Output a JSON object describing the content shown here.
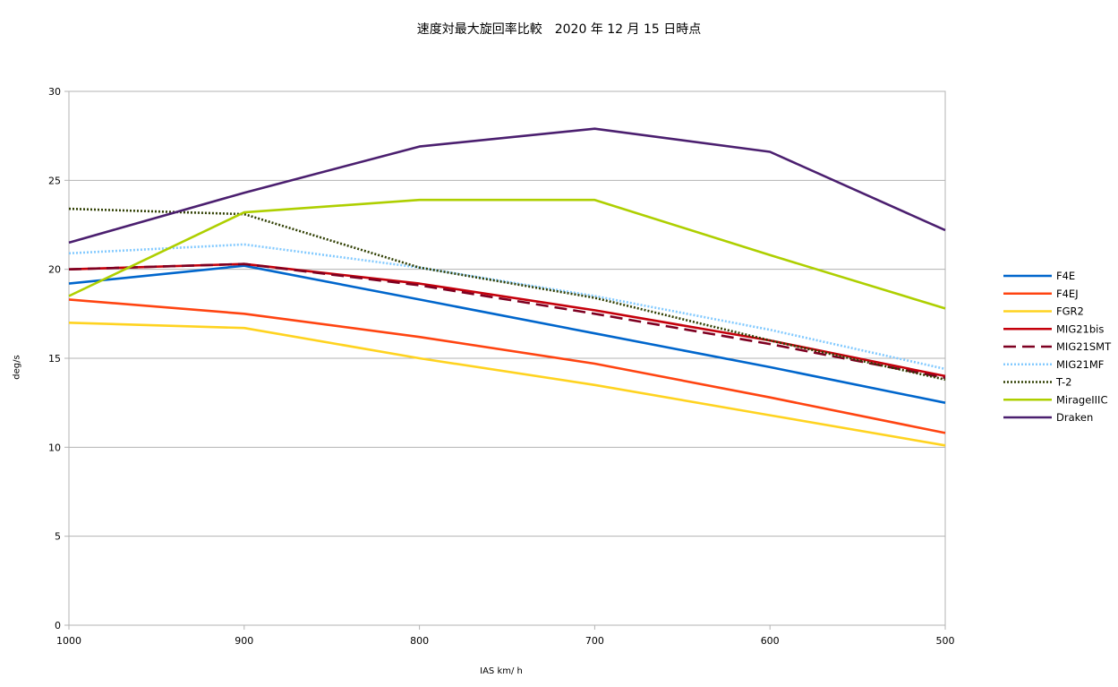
{
  "chart_data": {
    "type": "line",
    "title": "速度対最大旋回率比較　2020 年 12 月 15 日時点",
    "xlabel": "IAS km/ h",
    "ylabel": "deg/s",
    "categories": [
      "1000",
      "900",
      "800",
      "700",
      "600",
      "500"
    ],
    "ylim": [
      0,
      30
    ],
    "yticks": [
      0,
      5,
      10,
      15,
      20,
      25,
      30
    ],
    "grid": true,
    "legend_position": "right",
    "series": [
      {
        "name": "F4E",
        "color": "#0066cc",
        "style": "solid",
        "values": [
          19.2,
          20.2,
          18.3,
          16.4,
          14.5,
          12.5
        ]
      },
      {
        "name": "F4EJ",
        "color": "#ff4411",
        "style": "solid",
        "values": [
          18.3,
          17.5,
          16.2,
          14.7,
          12.8,
          10.8
        ]
      },
      {
        "name": "FGR2",
        "color": "#ffd320",
        "style": "solid",
        "values": [
          17.0,
          16.7,
          15.0,
          13.5,
          11.8,
          10.1
        ]
      },
      {
        "name": "MIG21bis",
        "color": "#c5000b",
        "style": "solid",
        "values": [
          20.0,
          20.3,
          19.2,
          17.7,
          16.0,
          14.0
        ]
      },
      {
        "name": "MIG21SMT",
        "color": "#7e0021",
        "style": "dash",
        "values": [
          20.0,
          20.3,
          19.1,
          17.5,
          15.8,
          13.9
        ]
      },
      {
        "name": "MIG21MF",
        "color": "#83caff",
        "style": "dot",
        "values": [
          20.9,
          21.4,
          20.1,
          18.5,
          16.6,
          14.4
        ]
      },
      {
        "name": "T-2",
        "color": "#314004",
        "style": "dot",
        "values": [
          23.4,
          23.1,
          20.1,
          18.4,
          16.0,
          13.8
        ]
      },
      {
        "name": "MirageIIIC",
        "color": "#aecf00",
        "style": "solid",
        "values": [
          18.5,
          23.2,
          23.9,
          23.9,
          20.8,
          17.8
        ]
      },
      {
        "name": "Draken",
        "color": "#4b1f6f",
        "style": "solid",
        "values": [
          21.5,
          24.3,
          26.9,
          27.9,
          26.6,
          22.2
        ]
      }
    ]
  }
}
